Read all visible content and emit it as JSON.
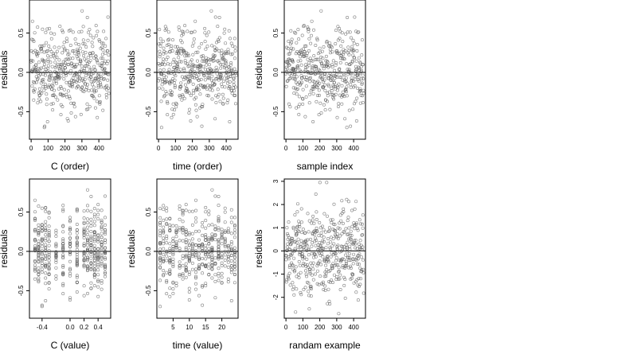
{
  "chart_data": [
    {
      "type": "scatter",
      "xlabel": "C (order)",
      "ylabel": "residuals",
      "xlim": [
        -10,
        470
      ],
      "ylim": [
        -0.85,
        0.92
      ],
      "xticks": [
        0,
        100,
        200,
        300,
        400
      ],
      "yticks": [
        -0.5,
        0.0,
        0.5
      ],
      "hline": 0,
      "series": [
        {
          "points": []
        }
      ]
    },
    {
      "type": "scatter",
      "xlabel": "time (order)",
      "ylabel": "residuals",
      "xlim": [
        -10,
        470
      ],
      "ylim": [
        -0.85,
        0.92
      ],
      "xticks": [
        0,
        100,
        200,
        300,
        400
      ],
      "yticks": [
        -0.5,
        0.0,
        0.5
      ],
      "hline": 0,
      "series": [
        {
          "points": []
        }
      ]
    },
    {
      "type": "scatter",
      "xlabel": "sample index",
      "ylabel": "residuals",
      "xlim": [
        -10,
        470
      ],
      "ylim": [
        -0.85,
        0.92
      ],
      "xticks": [
        0,
        100,
        200,
        300,
        400
      ],
      "yticks": [
        -0.5,
        0.0,
        0.5
      ],
      "hline": 0,
      "series": [
        {
          "points": []
        }
      ]
    },
    {
      "type": "scatter",
      "xlabel": "C (value)",
      "ylabel": "residuals",
      "xlim": [
        -0.58,
        0.58
      ],
      "ylim": [
        -0.85,
        0.92
      ],
      "xticks": [
        -0.4,
        0.0,
        0.2,
        0.4
      ],
      "yticks": [
        -0.5,
        0.0,
        0.5
      ],
      "hline": 0,
      "series": [
        {
          "points": []
        }
      ]
    },
    {
      "type": "scatter",
      "xlabel": "time (value)",
      "ylabel": "residuals",
      "xlim": [
        0,
        25
      ],
      "ylim": [
        -0.85,
        0.92
      ],
      "xticks": [
        5,
        10,
        15,
        20
      ],
      "yticks": [
        -0.5,
        0.0,
        0.5
      ],
      "hline": 0,
      "series": [
        {
          "points": []
        }
      ]
    },
    {
      "type": "scatter",
      "xlabel": "randam example",
      "ylabel": "residuals",
      "xlim": [
        -10,
        470
      ],
      "ylim": [
        -2.9,
        3.1
      ],
      "xticks": [
        0,
        100,
        200,
        300,
        400
      ],
      "yticks": [
        -2,
        -1,
        0,
        1,
        2,
        3
      ],
      "hline": 0,
      "series": [
        {
          "points": []
        }
      ]
    }
  ]
}
